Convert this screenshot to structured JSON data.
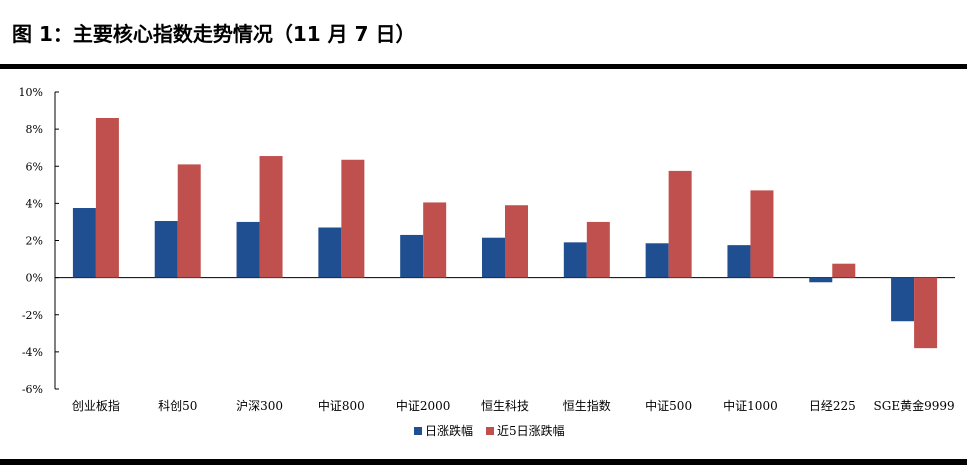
{
  "figure": {
    "title": "图 1：主要核心指数走势情况（11 月 7 日）"
  },
  "chart_data": {
    "type": "bar",
    "categories": [
      "创业板指",
      "科创50",
      "沪深300",
      "中证800",
      "中证2000",
      "恒生科技",
      "恒生指数",
      "中证500",
      "中证1000",
      "日经225",
      "SGE黄金9999"
    ],
    "series": [
      {
        "name": "日涨跌幅",
        "color": "#1f4e91",
        "values": [
          3.75,
          3.05,
          3.0,
          2.7,
          2.3,
          2.15,
          1.9,
          1.85,
          1.75,
          -0.25,
          -2.35
        ]
      },
      {
        "name": "近5日涨跌幅",
        "color": "#c0504d",
        "values": [
          8.6,
          6.1,
          6.55,
          6.35,
          4.05,
          3.9,
          3.0,
          5.75,
          4.7,
          0.75,
          -3.8
        ]
      }
    ],
    "ylim": [
      -6,
      10
    ],
    "yticks": [
      "10%",
      "8%",
      "6%",
      "4%",
      "2%",
      "0%",
      "-2%",
      "-4%",
      "-6%"
    ],
    "ytick_values": [
      10,
      8,
      6,
      4,
      2,
      0,
      -2,
      -4,
      -6
    ],
    "grid": false,
    "legend_position": "bottom-center"
  }
}
